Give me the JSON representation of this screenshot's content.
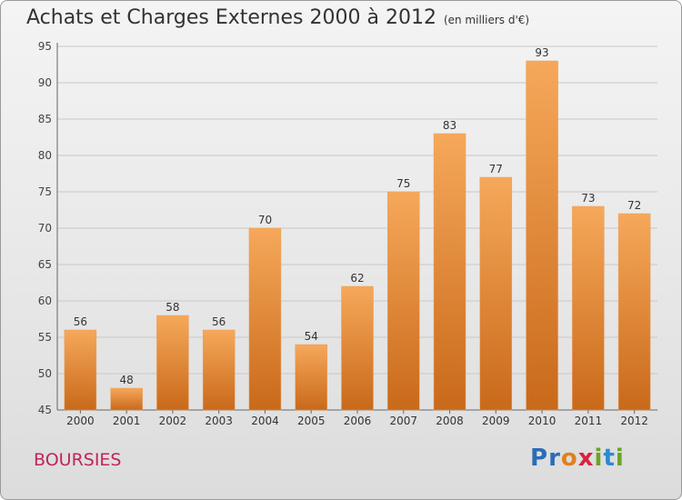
{
  "header": {
    "title": "Achats et Charges Externes 2000 à 2012",
    "subtitle": "(en milliers d'€)"
  },
  "footer": {
    "town": "BOURSIES",
    "logo_letters": [
      {
        "ch": "P",
        "color": "#2a6db5"
      },
      {
        "ch": "r",
        "color": "#2a6db5"
      },
      {
        "ch": "o",
        "color": "#e0801f"
      },
      {
        "ch": "x",
        "color": "#d6233f"
      },
      {
        "ch": "i",
        "color": "#6aa524"
      },
      {
        "ch": "t",
        "color": "#2a8ad0"
      },
      {
        "ch": "i",
        "color": "#6aa524"
      }
    ]
  },
  "colors": {
    "bar": "#f0923a",
    "bar_top": "#f6a85a",
    "bar_bottom": "#c9691a"
  },
  "chart_data": {
    "type": "bar",
    "categories": [
      "2000",
      "2001",
      "2002",
      "2003",
      "2004",
      "2005",
      "2006",
      "2007",
      "2008",
      "2009",
      "2010",
      "2011",
      "2012"
    ],
    "values": [
      56,
      48,
      58,
      56,
      70,
      54,
      62,
      75,
      83,
      77,
      93,
      73,
      72
    ],
    "data_labels": [
      "56",
      "48",
      "58",
      "56",
      "70",
      "54",
      "62",
      "75",
      "83",
      "77",
      "93",
      "73",
      "72"
    ],
    "yticks": [
      45,
      50,
      55,
      60,
      65,
      70,
      75,
      80,
      85,
      90,
      95
    ],
    "ylim": [
      45,
      95
    ],
    "grid": true,
    "title": "Achats et Charges Externes 2000 à 2012",
    "xlabel": "",
    "ylabel": ""
  }
}
